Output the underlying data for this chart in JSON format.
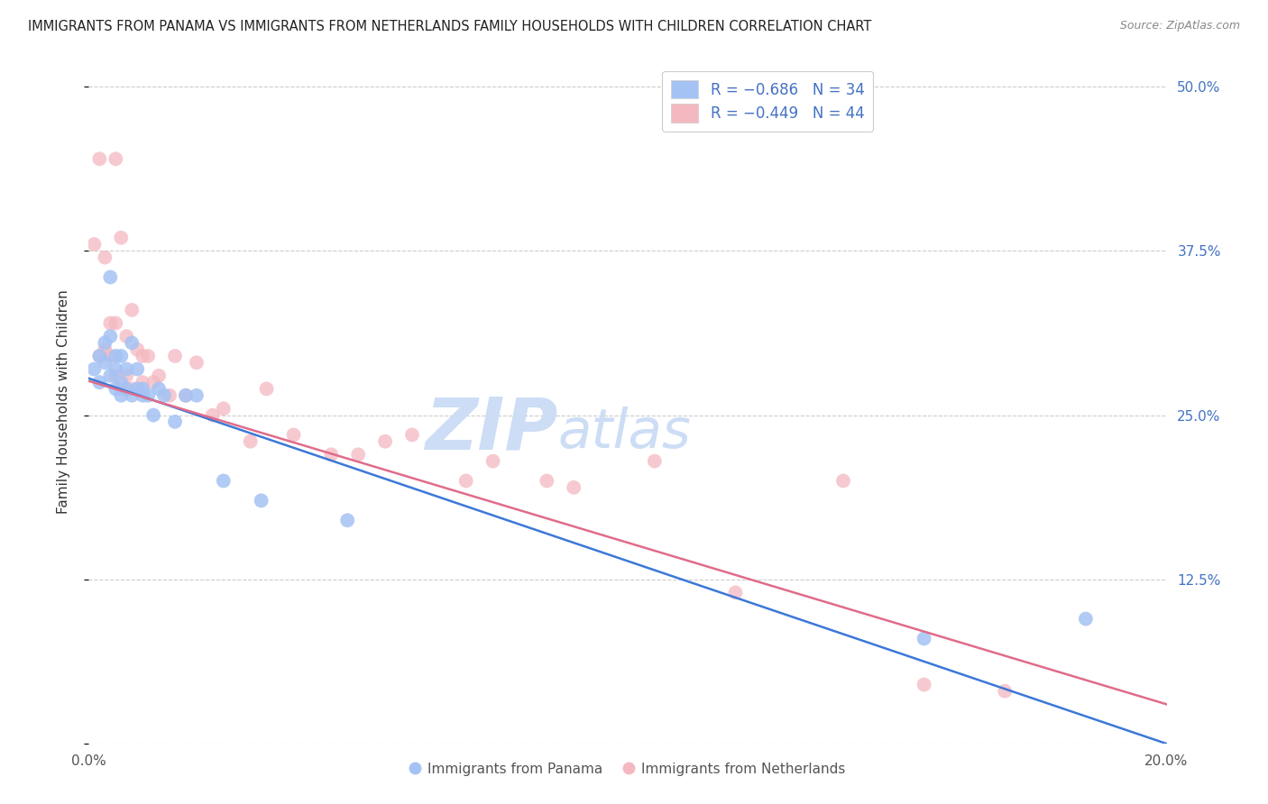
{
  "title": "IMMIGRANTS FROM PANAMA VS IMMIGRANTS FROM NETHERLANDS FAMILY HOUSEHOLDS WITH CHILDREN CORRELATION CHART",
  "source": "Source: ZipAtlas.com",
  "ylabel": "Family Households with Children",
  "xlim": [
    0.0,
    0.2
  ],
  "ylim": [
    0.0,
    0.52
  ],
  "xticks": [
    0.0,
    0.05,
    0.1,
    0.15,
    0.2
  ],
  "xticklabels": [
    "0.0%",
    "",
    "",
    "",
    "20.0%"
  ],
  "yticks_right": [
    0.0,
    0.125,
    0.25,
    0.375,
    0.5
  ],
  "ytick_labels_right": [
    "",
    "12.5%",
    "25.0%",
    "37.5%",
    "50.0%"
  ],
  "blue_color": "#a4c2f4",
  "pink_color": "#f4b8c1",
  "blue_line_color": "#3c78d8",
  "pink_line_color": "#e06c8a",
  "blue_scatter_alpha": 0.85,
  "pink_scatter_alpha": 0.75,
  "watermark_zip": "ZIP",
  "watermark_atlas": "atlas",
  "panama_x": [
    0.001,
    0.002,
    0.002,
    0.003,
    0.003,
    0.004,
    0.004,
    0.004,
    0.005,
    0.005,
    0.005,
    0.006,
    0.006,
    0.006,
    0.007,
    0.007,
    0.008,
    0.008,
    0.009,
    0.009,
    0.01,
    0.01,
    0.011,
    0.012,
    0.013,
    0.014,
    0.016,
    0.018,
    0.02,
    0.025,
    0.032,
    0.048,
    0.155,
    0.185
  ],
  "panama_y": [
    0.285,
    0.295,
    0.275,
    0.305,
    0.29,
    0.31,
    0.28,
    0.355,
    0.27,
    0.295,
    0.285,
    0.275,
    0.295,
    0.265,
    0.285,
    0.27,
    0.305,
    0.265,
    0.27,
    0.285,
    0.265,
    0.27,
    0.265,
    0.25,
    0.27,
    0.265,
    0.245,
    0.265,
    0.265,
    0.2,
    0.185,
    0.17,
    0.08,
    0.095
  ],
  "netherlands_x": [
    0.001,
    0.002,
    0.002,
    0.003,
    0.003,
    0.004,
    0.004,
    0.005,
    0.005,
    0.005,
    0.006,
    0.006,
    0.007,
    0.007,
    0.008,
    0.008,
    0.009,
    0.01,
    0.01,
    0.011,
    0.012,
    0.013,
    0.015,
    0.016,
    0.018,
    0.02,
    0.023,
    0.025,
    0.03,
    0.033,
    0.038,
    0.045,
    0.05,
    0.055,
    0.06,
    0.07,
    0.075,
    0.085,
    0.09,
    0.105,
    0.12,
    0.14,
    0.155,
    0.17
  ],
  "netherlands_y": [
    0.38,
    0.445,
    0.295,
    0.3,
    0.37,
    0.32,
    0.295,
    0.445,
    0.32,
    0.28,
    0.385,
    0.27,
    0.31,
    0.28,
    0.33,
    0.27,
    0.3,
    0.275,
    0.295,
    0.295,
    0.275,
    0.28,
    0.265,
    0.295,
    0.265,
    0.29,
    0.25,
    0.255,
    0.23,
    0.27,
    0.235,
    0.22,
    0.22,
    0.23,
    0.235,
    0.2,
    0.215,
    0.2,
    0.195,
    0.215,
    0.115,
    0.2,
    0.045,
    0.04
  ],
  "blue_line_x0": 0.0,
  "blue_line_y0": 0.278,
  "blue_line_x1": 0.2,
  "blue_line_y1": 0.0,
  "pink_line_x0": 0.0,
  "pink_line_y0": 0.276,
  "pink_line_x1": 0.2,
  "pink_line_y1": 0.03
}
